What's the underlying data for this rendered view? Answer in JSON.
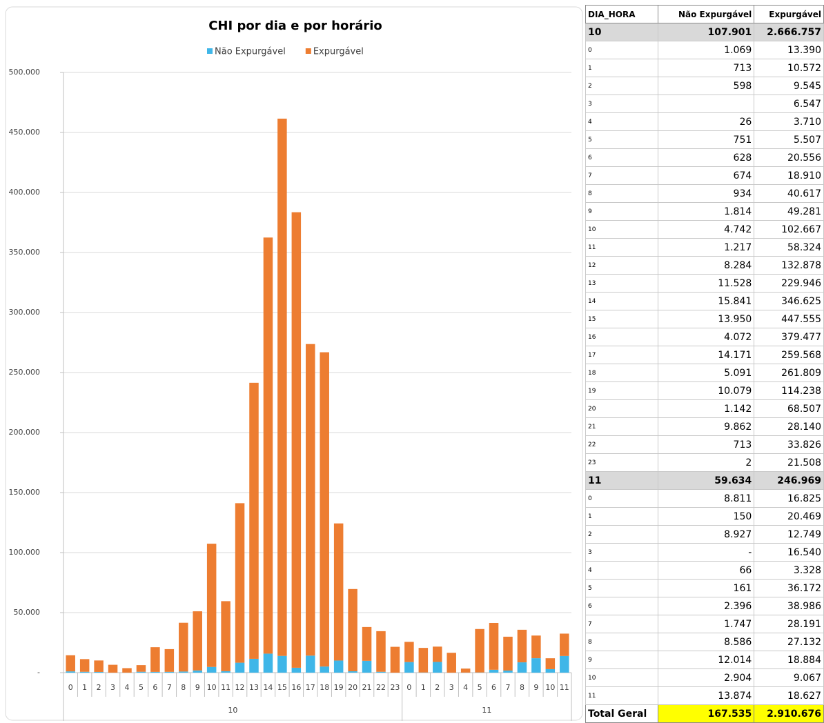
{
  "chart_data": {
    "type": "stacked_bar",
    "title": "CHI por dia e por horário",
    "groups": [
      {
        "label": "10",
        "categories": [
          "0",
          "1",
          "2",
          "3",
          "4",
          "5",
          "6",
          "7",
          "8",
          "9",
          "10",
          "11",
          "12",
          "13",
          "14",
          "15",
          "16",
          "17",
          "18",
          "19",
          "20",
          "21",
          "22",
          "23"
        ]
      },
      {
        "label": "11",
        "categories": [
          "0",
          "1",
          "2",
          "3",
          "4",
          "5",
          "6",
          "7",
          "8",
          "9",
          "10",
          "11"
        ]
      }
    ],
    "series": [
      {
        "name": "Não Expurgável",
        "color": "#3fb6e8",
        "values": [
          1069,
          713,
          598,
          null,
          26,
          751,
          628,
          674,
          934,
          1814,
          4742,
          1217,
          8284,
          11528,
          15841,
          13950,
          4072,
          14171,
          5091,
          10079,
          1142,
          9862,
          713,
          2,
          8811,
          150,
          8927,
          0,
          66,
          161,
          2396,
          1747,
          8586,
          12014,
          2904,
          13874
        ]
      },
      {
        "name": "Expurgável",
        "color": "#ed7d31",
        "values": [
          13390,
          10572,
          9545,
          6547,
          3710,
          5507,
          20556,
          18910,
          40617,
          49281,
          102667,
          58324,
          132878,
          229946,
          346625,
          447555,
          379477,
          259568,
          261809,
          114238,
          68507,
          28140,
          33826,
          21508,
          16825,
          20469,
          12749,
          16540,
          3328,
          36172,
          38986,
          28191,
          27132,
          18884,
          9067,
          18627
        ]
      }
    ],
    "ylim": [
      0,
      500000
    ],
    "yticks": [
      {
        "value": 0,
        "label": "-"
      },
      {
        "value": 50000,
        "label": "50.000"
      },
      {
        "value": 100000,
        "label": "100.000"
      },
      {
        "value": 150000,
        "label": "150.000"
      },
      {
        "value": 200000,
        "label": "200.000"
      },
      {
        "value": 250000,
        "label": "250.000"
      },
      {
        "value": 300000,
        "label": "300.000"
      },
      {
        "value": 350000,
        "label": "350.000"
      },
      {
        "value": 400000,
        "label": "400.000"
      },
      {
        "value": 450000,
        "label": "450.000"
      },
      {
        "value": 500000,
        "label": "500.000"
      }
    ],
    "grid": true,
    "legend": "top"
  },
  "table": {
    "columns": [
      "DIA_HORA",
      "Não Expurgável",
      "Expurgável"
    ],
    "groups": [
      {
        "row": [
          "10",
          "107.901",
          "2.666.757"
        ],
        "rows": [
          [
            "0",
            "1.069",
            "13.390"
          ],
          [
            "1",
            "713",
            "10.572"
          ],
          [
            "2",
            "598",
            "9.545"
          ],
          [
            "3",
            "",
            "6.547"
          ],
          [
            "4",
            "26",
            "3.710"
          ],
          [
            "5",
            "751",
            "5.507"
          ],
          [
            "6",
            "628",
            "20.556"
          ],
          [
            "7",
            "674",
            "18.910"
          ],
          [
            "8",
            "934",
            "40.617"
          ],
          [
            "9",
            "1.814",
            "49.281"
          ],
          [
            "10",
            "4.742",
            "102.667"
          ],
          [
            "11",
            "1.217",
            "58.324"
          ],
          [
            "12",
            "8.284",
            "132.878"
          ],
          [
            "13",
            "11.528",
            "229.946"
          ],
          [
            "14",
            "15.841",
            "346.625"
          ],
          [
            "15",
            "13.950",
            "447.555"
          ],
          [
            "16",
            "4.072",
            "379.477"
          ],
          [
            "17",
            "14.171",
            "259.568"
          ],
          [
            "18",
            "5.091",
            "261.809"
          ],
          [
            "19",
            "10.079",
            "114.238"
          ],
          [
            "20",
            "1.142",
            "68.507"
          ],
          [
            "21",
            "9.862",
            "28.140"
          ],
          [
            "22",
            "713",
            "33.826"
          ],
          [
            "23",
            "2",
            "21.508"
          ]
        ]
      },
      {
        "row": [
          "11",
          "59.634",
          "246.969"
        ],
        "rows": [
          [
            "0",
            "8.811",
            "16.825"
          ],
          [
            "1",
            "150",
            "20.469"
          ],
          [
            "2",
            "8.927",
            "12.749"
          ],
          [
            "3",
            "-",
            "16.540"
          ],
          [
            "4",
            "66",
            "3.328"
          ],
          [
            "5",
            "161",
            "36.172"
          ],
          [
            "6",
            "2.396",
            "38.986"
          ],
          [
            "7",
            "1.747",
            "28.191"
          ],
          [
            "8",
            "8.586",
            "27.132"
          ],
          [
            "9",
            "12.014",
            "18.884"
          ],
          [
            "10",
            "2.904",
            "9.067"
          ],
          [
            "11",
            "13.874",
            "18.627"
          ]
        ]
      }
    ],
    "total": [
      "Total Geral",
      "167.535",
      "2.910.676"
    ]
  }
}
